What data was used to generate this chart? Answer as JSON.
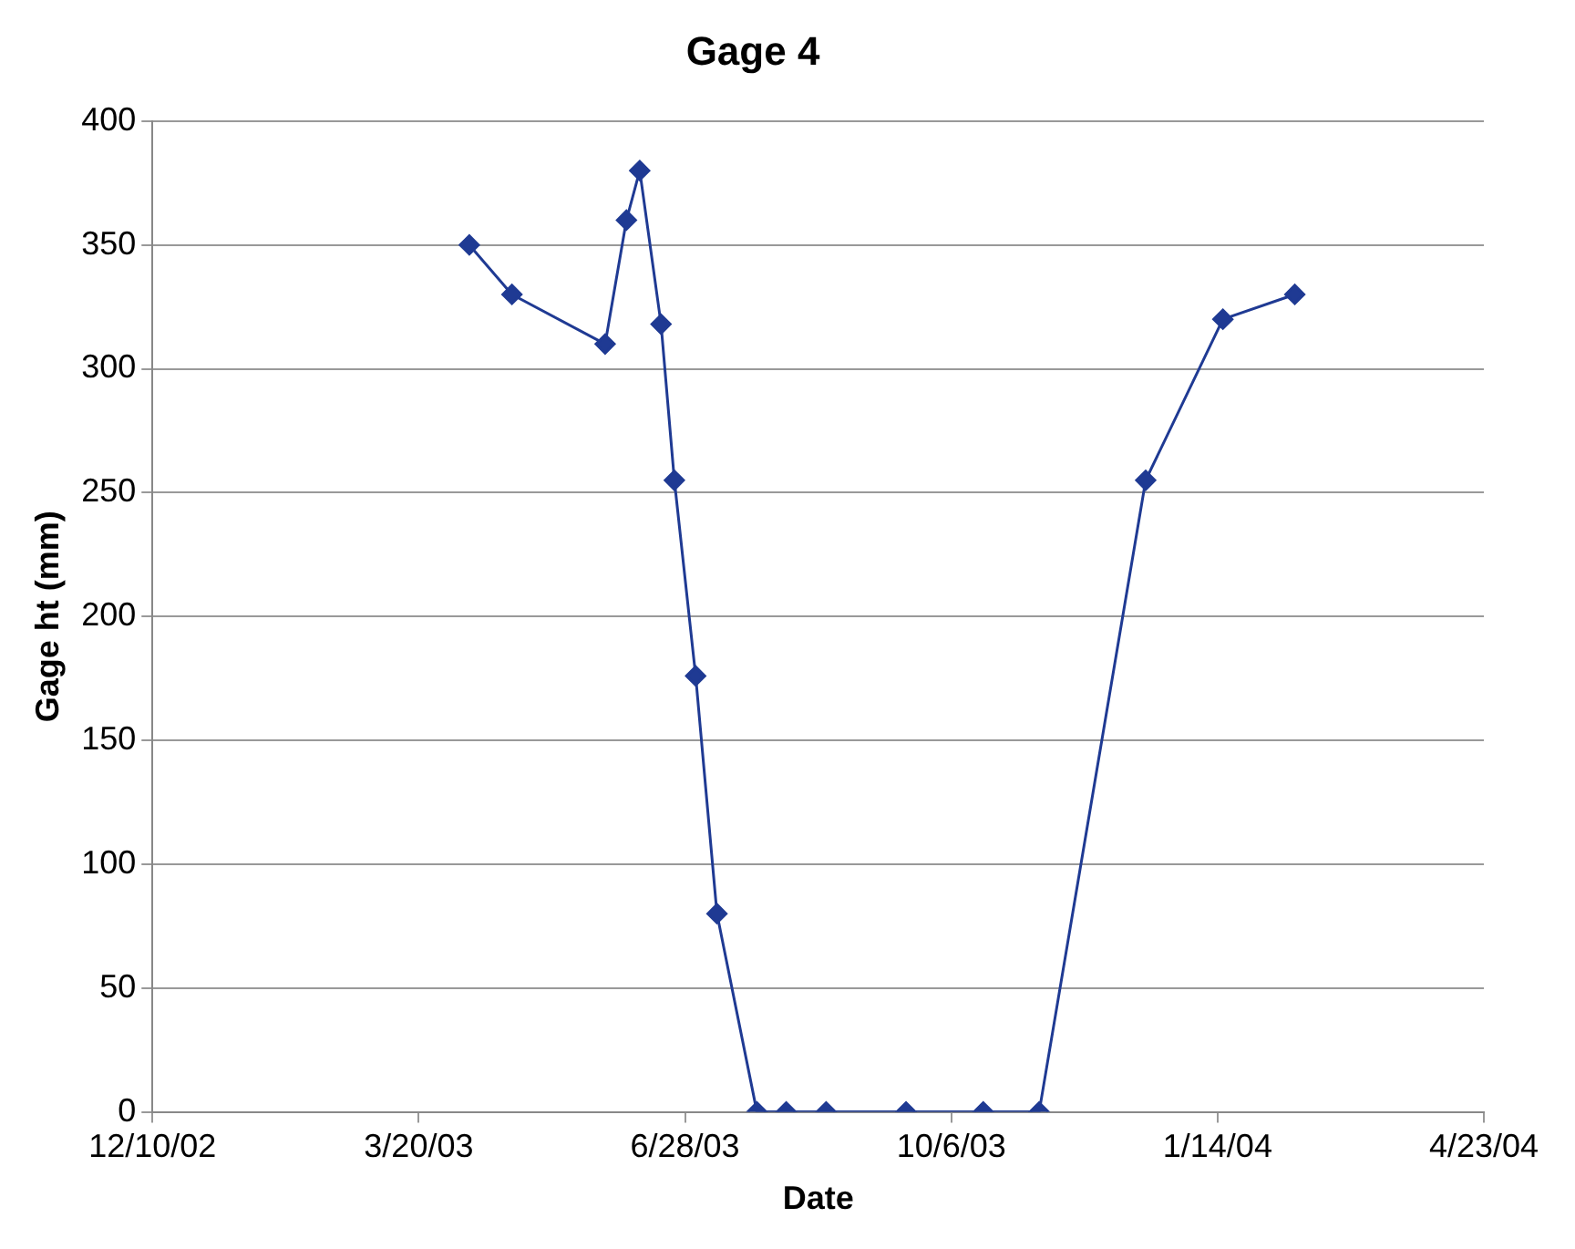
{
  "chart_data": {
    "type": "line",
    "title": "Gage 4",
    "xlabel": "Date",
    "ylabel": "Gage ht (mm)",
    "x": [
      "2003-04-08",
      "2003-04-24",
      "2003-05-29",
      "2003-06-06",
      "2003-06-11",
      "2003-06-19",
      "2003-06-24",
      "2003-07-02",
      "2003-07-10",
      "2003-07-25",
      "2003-08-05",
      "2003-08-20",
      "2003-09-19",
      "2003-10-18",
      "2003-11-08",
      "2003-12-18",
      "2004-01-16",
      "2004-02-12"
    ],
    "series": [
      {
        "color": "#1f3a93",
        "values": [
          350,
          330,
          310,
          360,
          380,
          318,
          255,
          176,
          80,
          0,
          0,
          0,
          0,
          0,
          0,
          255,
          320,
          330
        ]
      }
    ],
    "xlim": [
      "2002-12-10",
      "2004-04-23"
    ],
    "xticks": [
      {
        "value": "2002-12-10",
        "label": "12/10/02"
      },
      {
        "value": "2003-03-20",
        "label": "3/20/03"
      },
      {
        "value": "2003-06-28",
        "label": "6/28/03"
      },
      {
        "value": "2003-10-06",
        "label": "10/6/03"
      },
      {
        "value": "2004-01-14",
        "label": "1/14/04"
      },
      {
        "value": "2004-04-23",
        "label": "4/23/04"
      }
    ],
    "ylim": [
      0,
      400
    ],
    "yticks": [
      0,
      50,
      100,
      150,
      200,
      250,
      300,
      350,
      400
    ],
    "grid": "y",
    "legend": false,
    "marker": "diamond",
    "line_style": "solid"
  }
}
